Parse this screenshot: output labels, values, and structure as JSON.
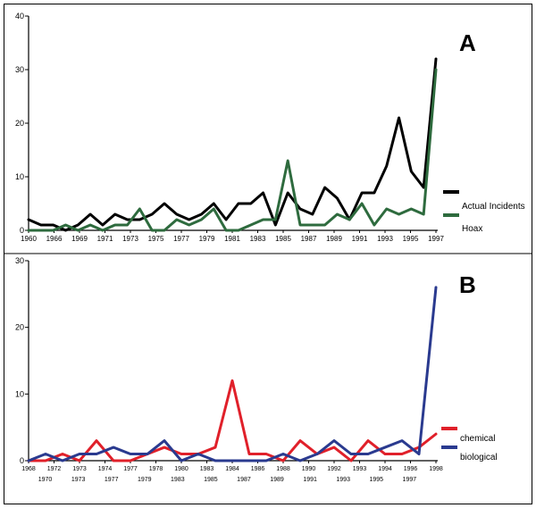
{
  "chart_data": [
    {
      "type": "line",
      "panel_label": "A",
      "ylim": [
        0,
        40
      ],
      "yticks": [
        0,
        10,
        20,
        30,
        40
      ],
      "x_tick_labels": [
        "1960",
        "1966",
        "1969",
        "1971",
        "1973",
        "1975",
        "1977",
        "1979",
        "1981",
        "1983",
        "1985",
        "1987",
        "1989",
        "1991",
        "1993",
        "1995",
        "1997"
      ],
      "legend_position": "right",
      "colors": {
        "Actual Incidents": "#000000",
        "Hoax": "#2e6b3e"
      },
      "series": [
        {
          "name": "Actual Incidents",
          "values": [
            2,
            1,
            1,
            0,
            1,
            3,
            1,
            3,
            2,
            2,
            3,
            5,
            3,
            2,
            3,
            5,
            2,
            5,
            5,
            7,
            1,
            7,
            4,
            3,
            8,
            6,
            2,
            7,
            7,
            12,
            21,
            11,
            8,
            32
          ]
        },
        {
          "name": "Hoax",
          "values": [
            0,
            0,
            0,
            1,
            0,
            1,
            0,
            1,
            1,
            4,
            0,
            0,
            2,
            1,
            2,
            4,
            0,
            0,
            1,
            2,
            2,
            13,
            1,
            1,
            1,
            3,
            2,
            5,
            1,
            4,
            3,
            4,
            3,
            30
          ]
        }
      ]
    },
    {
      "type": "line",
      "panel_label": "B",
      "ylim": [
        0,
        30
      ],
      "yticks": [
        0,
        10,
        20,
        30
      ],
      "x_tick_labels_upper": [
        "1968",
        "1972",
        "1973",
        "1974",
        "1977",
        "1978",
        "1980",
        "1983",
        "1984",
        "1986",
        "1988",
        "1990",
        "1992",
        "1993",
        "1994",
        "1996",
        "1998"
      ],
      "x_tick_labels_lower": [
        "1970",
        "1973",
        "1977",
        "1979",
        "1983",
        "1985",
        "1987",
        "1989",
        "1991",
        "1993",
        "1995",
        "1997"
      ],
      "legend_position": "right",
      "colors": {
        "chemical": "#e0202a",
        "biological": "#2a3a8f"
      },
      "series": [
        {
          "name": "chemical",
          "values": [
            0,
            0,
            1,
            0,
            3,
            0,
            0,
            1,
            2,
            1,
            1,
            2,
            12,
            1,
            1,
            0,
            3,
            1,
            2,
            0,
            3,
            1,
            1,
            2,
            4
          ]
        },
        {
          "name": "biological",
          "values": [
            0,
            1,
            0,
            1,
            1,
            2,
            1,
            1,
            3,
            0,
            1,
            0,
            0,
            0,
            0,
            1,
            0,
            1,
            3,
            1,
            1,
            2,
            3,
            1,
            26
          ]
        }
      ]
    }
  ]
}
